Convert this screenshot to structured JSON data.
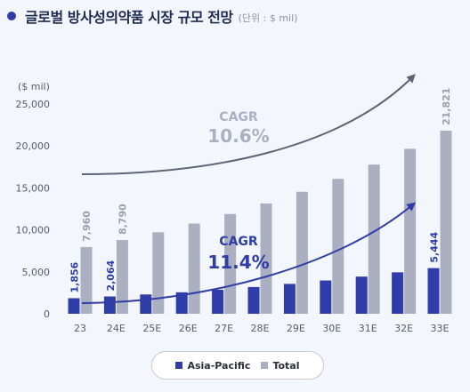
{
  "header": {
    "title": "글로벌 방사성의약품 시장 규모 전망",
    "unit": "(단위 : $ mil)"
  },
  "colors": {
    "asia_pacific": "#2f3da8",
    "total": "#aab0c2",
    "total_label": "#9aa0b2",
    "asia_label": "#2f3da8"
  },
  "chart_data": {
    "type": "bar",
    "title": "글로벌 방사성의약품 시장 규모 전망",
    "ylabel": "($ mil)",
    "ylim": [
      0,
      25000
    ],
    "yticks": [
      "0",
      "5,000",
      "10,000",
      "15,000",
      "20,000",
      "25,000"
    ],
    "categories": [
      "23",
      "24E",
      "25E",
      "26E",
      "27E",
      "28E",
      "29E",
      "30E",
      "31E",
      "32E",
      "33E"
    ],
    "series": [
      {
        "name": "Asia-Pacific",
        "values": [
          1856,
          2064,
          2300,
          2560,
          2860,
          3190,
          3560,
          3970,
          4430,
          4940,
          5444
        ],
        "labels": [
          "1,856",
          "2,064",
          "",
          "",
          "",
          "",
          "",
          "",
          "",
          "",
          "5,444"
        ]
      },
      {
        "name": "Total",
        "values": [
          7960,
          8790,
          9720,
          10750,
          11890,
          13150,
          14540,
          16080,
          17780,
          19660,
          21821
        ],
        "labels": [
          "7,960",
          "8,790",
          "",
          "",
          "",
          "",
          "",
          "",
          "",
          "",
          "21,821"
        ]
      }
    ],
    "annotations": [
      {
        "series": "Total",
        "label": "CAGR",
        "value": "10.6%"
      },
      {
        "series": "Asia-Pacific",
        "label": "CAGR",
        "value": "11.4%"
      }
    ],
    "legend": "bottom-center",
    "grid": false
  }
}
